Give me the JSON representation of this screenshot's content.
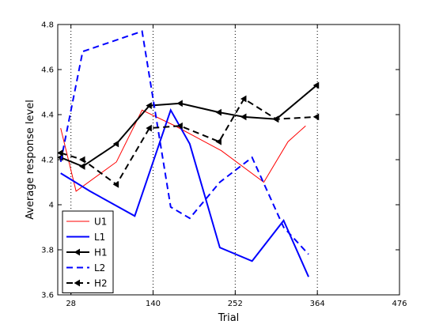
{
  "chart_data": {
    "type": "line",
    "title": "",
    "xlabel": "Trial",
    "ylabel": "Average response level",
    "xlim": [
      10,
      476
    ],
    "ylim": [
      3.6,
      4.8
    ],
    "xticks": [
      28,
      140,
      252,
      364,
      476
    ],
    "xtick_labels": [
      "28",
      "140",
      "252",
      "364",
      "476"
    ],
    "yticks": [
      3.6,
      3.8,
      4.0,
      4.2,
      4.4,
      4.6,
      4.8
    ],
    "ytick_labels": [
      "3.6",
      "3.8",
      "4",
      "4.2",
      "4.4",
      "4.6",
      "4.8"
    ],
    "vertical_gridlines": [
      28,
      140,
      252,
      364
    ],
    "grid": "vertical dotted",
    "legend_position": "bottom-left",
    "series": [
      {
        "name": "U1",
        "color": "#ff0000",
        "style": "solid-thin",
        "x": [
          14,
          35,
          90,
          125,
          170,
          233,
          291,
          324,
          348
        ],
        "y": [
          4.34,
          4.06,
          4.19,
          4.42,
          4.35,
          4.24,
          4.1,
          4.28,
          4.35
        ]
      },
      {
        "name": "L1",
        "color": "#0000ff",
        "style": "solid",
        "x": [
          14,
          54,
          115,
          164,
          190,
          231,
          275,
          318,
          352
        ],
        "y": [
          4.14,
          4.06,
          3.95,
          4.42,
          4.27,
          3.81,
          3.75,
          3.93,
          3.68
        ]
      },
      {
        "name": "H1",
        "color": "#000000",
        "style": "solid-markers",
        "x": [
          14,
          44,
          90,
          135,
          177,
          230,
          264,
          308,
          363
        ],
        "y": [
          4.21,
          4.17,
          4.27,
          4.44,
          4.45,
          4.41,
          4.39,
          4.38,
          4.53
        ]
      },
      {
        "name": "L2",
        "color": "#0000ff",
        "style": "dashed",
        "x": [
          14,
          44,
          125,
          164,
          190,
          231,
          275,
          318,
          352
        ],
        "y": [
          4.19,
          4.68,
          4.77,
          3.99,
          3.94,
          4.1,
          4.21,
          3.9,
          3.78
        ]
      },
      {
        "name": "H2",
        "color": "#000000",
        "style": "dashed-markers",
        "x": [
          14,
          44,
          90,
          135,
          177,
          230,
          264,
          308,
          363
        ],
        "y": [
          4.23,
          4.2,
          4.09,
          4.34,
          4.35,
          4.28,
          4.47,
          4.38,
          4.39
        ]
      }
    ]
  }
}
